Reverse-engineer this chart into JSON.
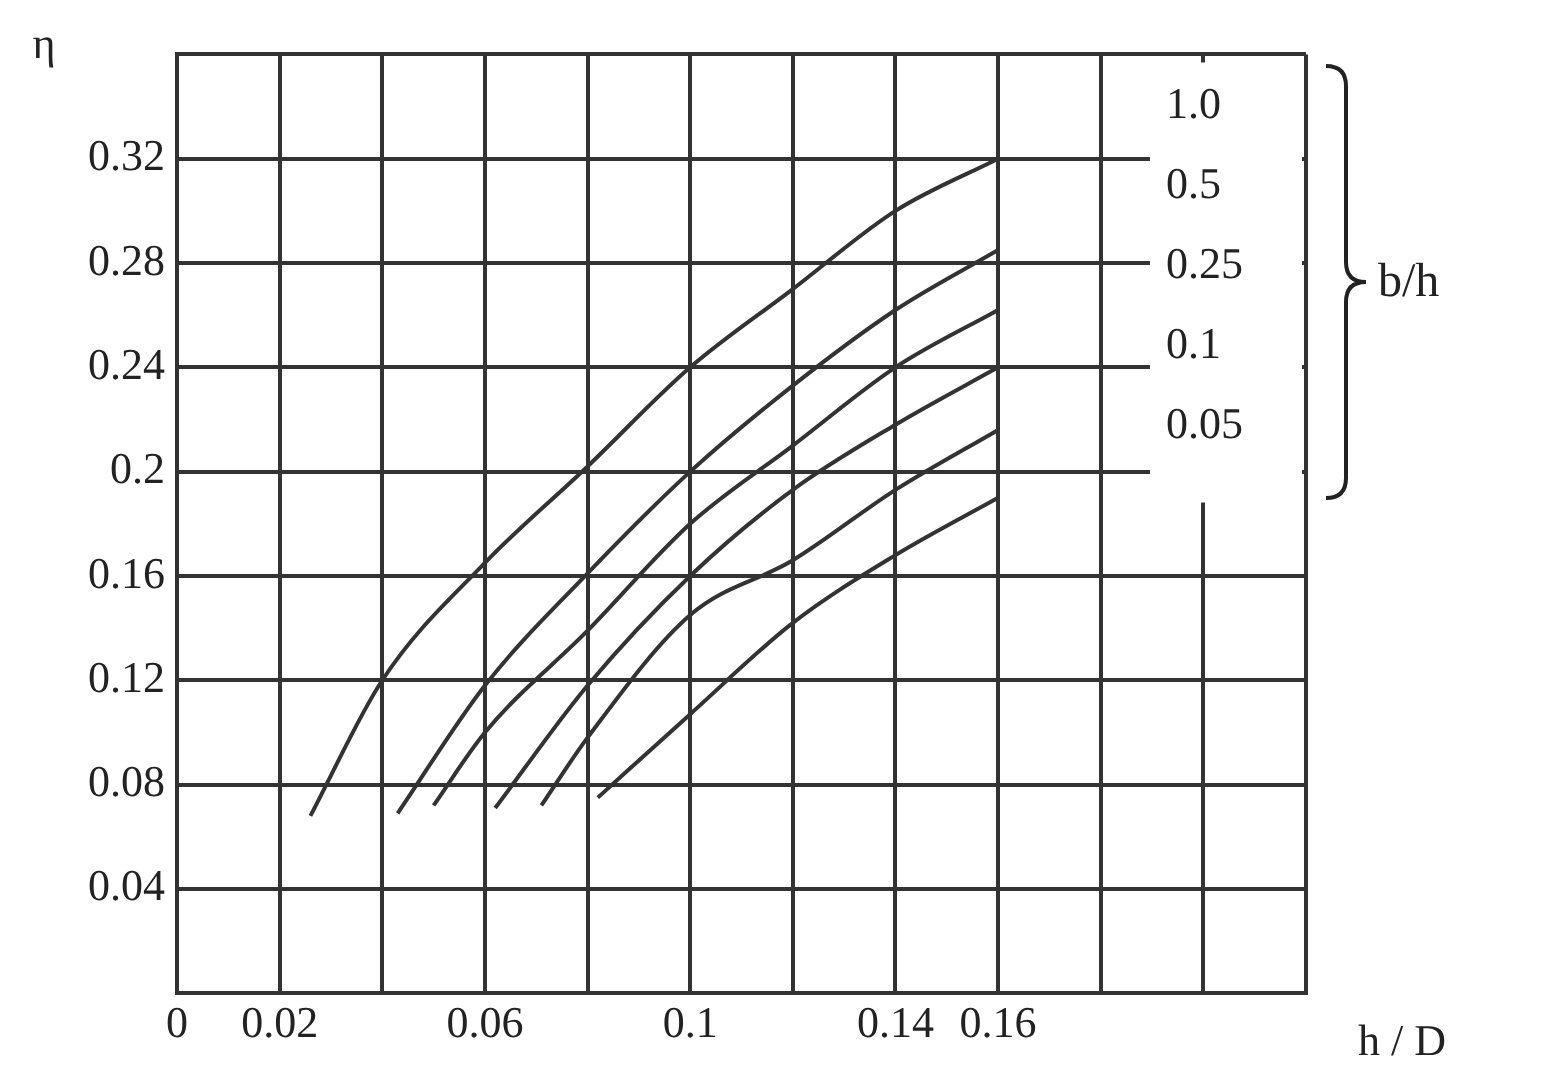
{
  "chart_data": {
    "type": "line",
    "xlabel": "h / D",
    "ylabel": "η",
    "legend_title": "b/h",
    "legend": "top right",
    "grid": true,
    "marker": "none",
    "line_style": "solid",
    "xlim": [
      0,
      0.22
    ],
    "ylim": [
      0,
      0.36
    ],
    "xticks": [
      0,
      0.02,
      {
        "value": 0.04,
        "label": null
      },
      0.06,
      {
        "value": 0.08,
        "label": null
      },
      0.1,
      {
        "value": 0.12,
        "label": null
      },
      0.14,
      0.16,
      {
        "value": 0.18,
        "label": null
      },
      {
        "value": 0.2,
        "label": null
      },
      {
        "value": 0.22,
        "label": null
      }
    ],
    "yticks": [
      0.04,
      0.08,
      0.12,
      0.16,
      0.2,
      0.24,
      0.28,
      0.32,
      {
        "value": 0.36,
        "label": null
      }
    ],
    "series": [
      {
        "name": "1.0",
        "color": "#333333",
        "x": [
          0.026,
          0.04,
          0.06,
          0.08,
          0.1,
          0.12,
          0.14,
          0.16
        ],
        "values": [
          0.068,
          0.12,
          0.165,
          0.202,
          0.24,
          0.27,
          0.3,
          0.32
        ]
      },
      {
        "name": "0.5",
        "color": "#333333",
        "x": [
          0.043,
          0.06,
          0.08,
          0.1,
          0.12,
          0.14,
          0.16
        ],
        "values": [
          0.069,
          0.118,
          0.161,
          0.2,
          0.233,
          0.262,
          0.285
        ]
      },
      {
        "name": "0.25",
        "color": "#333333",
        "x": [
          0.05,
          0.06,
          0.08,
          0.1,
          0.12,
          0.14,
          0.16
        ],
        "values": [
          0.072,
          0.1,
          0.139,
          0.18,
          0.21,
          0.24,
          0.262
        ]
      },
      {
        "name": "0.1",
        "color": "#333333",
        "x": [
          0.062,
          0.08,
          0.1,
          0.12,
          0.14,
          0.16
        ],
        "values": [
          0.071,
          0.118,
          0.16,
          0.193,
          0.218,
          0.24
        ]
      },
      {
        "name": "0.05",
        "color": "#333333",
        "x": [
          0.071,
          0.08,
          0.1,
          0.12,
          0.14,
          0.16
        ],
        "values": [
          0.072,
          0.098,
          0.145,
          0.166,
          0.193,
          0.216
        ]
      },
      {
        "color": "#333333",
        "x": [
          0.082,
          0.1,
          0.12,
          0.14,
          0.16
        ],
        "values": [
          0.075,
          0.107,
          0.142,
          0.168,
          0.19
        ]
      }
    ]
  }
}
